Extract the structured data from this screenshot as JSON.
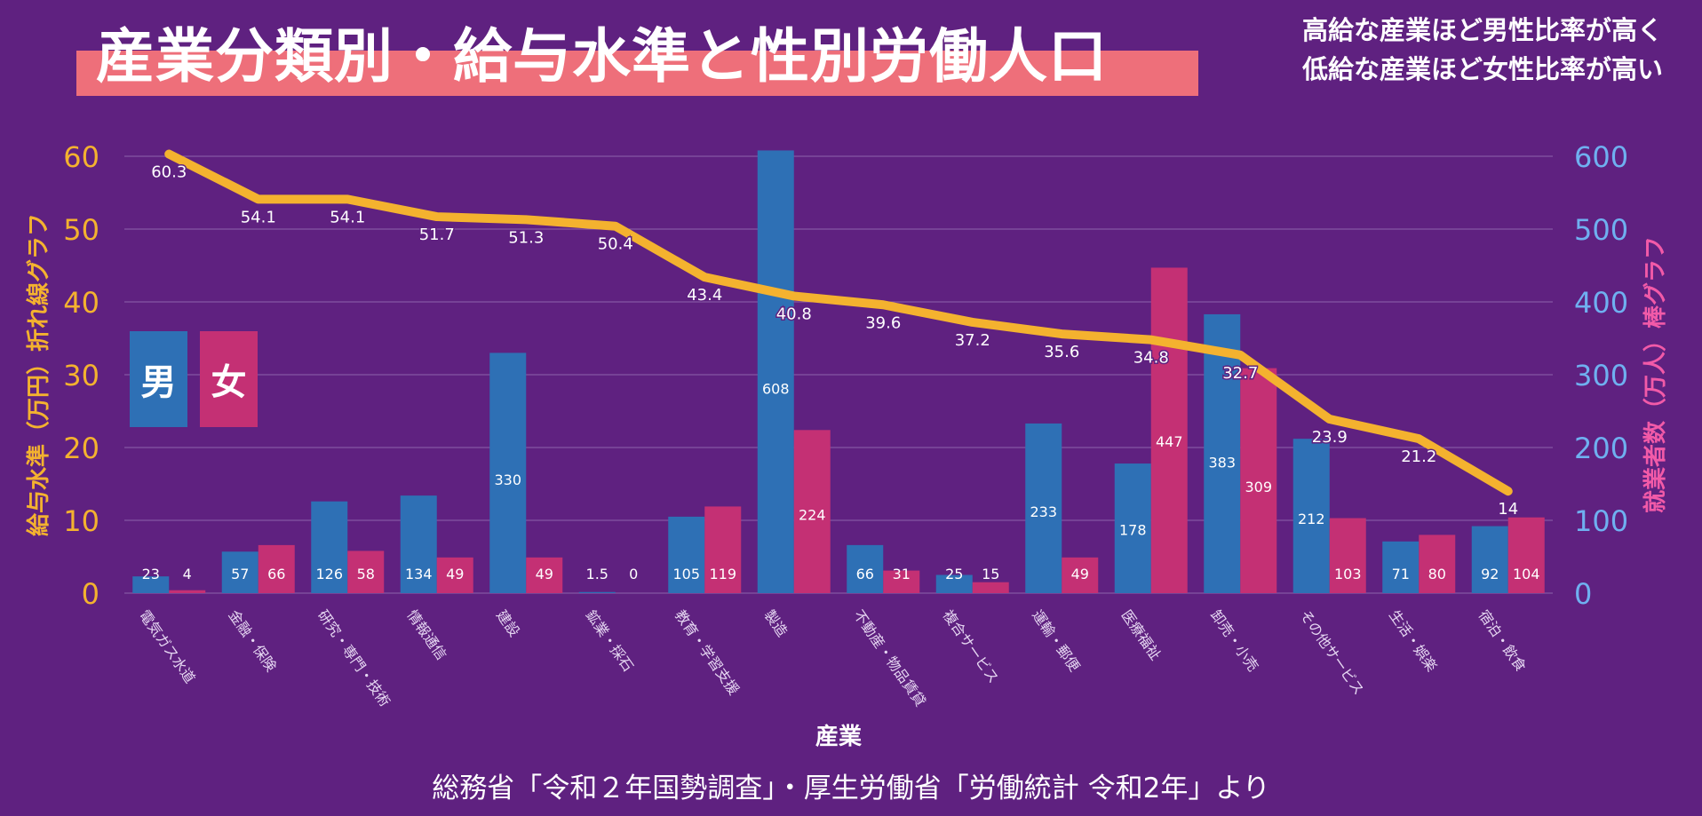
{
  "title": "産業分類別・給与水準と性別労働人口",
  "subtitle_lines": [
    "高給な産業ほど男性比率が高く",
    "低給な産業ほど女性比率が高い"
  ],
  "source": "総務省「令和２年国勢調査」・厚生労働省「労働統計 令和2年」より",
  "colors": {
    "background": "#5f2180",
    "male": "#2e70b5",
    "female": "#c43074",
    "salary_line": "#f4b22f",
    "left_axis": "#f4b22f",
    "right_axis": "#6fb0f0",
    "right_axis_label": "#f25aa8",
    "title_band": "#ee6f7a"
  },
  "legend": {
    "male": "男",
    "female": "女"
  },
  "chart_data": {
    "type": "bar",
    "categories": [
      "電気ガス水道",
      "金融・保険",
      "研究・専門・技術",
      "情報通信",
      "建設",
      "鉱業・採石",
      "教育・学習支援",
      "製造",
      "不動産・物品賃貸",
      "複合サービス",
      "運輸・郵便",
      "医療福祉",
      "卸売・小売",
      "その他サービス",
      "生活・娯楽",
      "宿泊・飲食"
    ],
    "series": [
      {
        "name": "男",
        "axis": "right",
        "values": [
          23,
          57,
          126,
          134,
          330,
          1.5,
          105,
          608,
          66,
          25,
          233,
          178,
          383,
          212,
          71,
          92
        ]
      },
      {
        "name": "女",
        "axis": "right",
        "values": [
          4,
          66,
          58,
          49,
          49,
          0,
          119,
          224,
          31,
          15,
          49,
          447,
          309,
          103,
          80,
          104
        ]
      },
      {
        "type": "line",
        "axis": "left",
        "values": [
          60.3,
          54.1,
          54.1,
          51.7,
          51.3,
          50.4,
          43.4,
          40.8,
          39.6,
          37.2,
          35.6,
          34.8,
          32.7,
          23.9,
          21.2,
          14
        ]
      }
    ],
    "xlabel": "産業",
    "ylabel_left": "給与水準（万円）折れ線グラフ",
    "ylabel_right": "就業者数（万人）棒グラフ",
    "ylim_left": [
      0,
      60
    ],
    "ylim_right": [
      0,
      600
    ],
    "yticks_left": [
      0,
      10,
      20,
      30,
      40,
      50,
      60
    ],
    "yticks_right": [
      0,
      100,
      200,
      300,
      400,
      500,
      600
    ],
    "grid": true,
    "legend_position": "left"
  }
}
